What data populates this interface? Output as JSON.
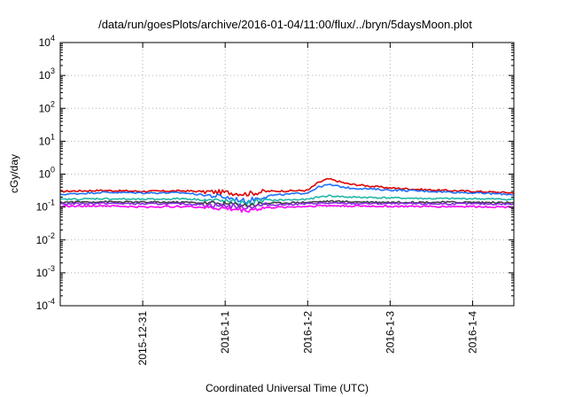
{
  "chart_data": {
    "type": "line",
    "title": "/data/run/goesPlots/archive/2016-01-04/11:00/flux/../bryn/5daysMoon.plot",
    "xlabel": "Coordinated Universal Time (UTC)",
    "ylabel": "cGy/day",
    "yscale": "log",
    "ylim": [
      0.0001,
      10000
    ],
    "xlim": [
      "2015-12-30T00:00",
      "2016-01-04T12:00"
    ],
    "x_tick_labels": [
      "2015-12-31",
      "2016-1-1",
      "2016-1-2",
      "2016-1-3",
      "2016-1-4"
    ],
    "x_tick_values": [
      "2015-12-31T00:00",
      "2016-01-01T00:00",
      "2016-01-02T00:00",
      "2016-01-03T00:00",
      "2016-01-04T00:00"
    ],
    "y_tick_labels": [
      {
        "base": "10",
        "exp": "-4",
        "value": 0.0001
      },
      {
        "base": "10",
        "exp": "-3",
        "value": 0.001
      },
      {
        "base": "10",
        "exp": "-2",
        "value": 0.01
      },
      {
        "base": "10",
        "exp": "-1",
        "value": 0.1
      },
      {
        "base": "10",
        "exp": "0",
        "value": 1
      },
      {
        "base": "10",
        "exp": "1",
        "value": 10
      },
      {
        "base": "10",
        "exp": "2",
        "value": 100
      },
      {
        "base": "10",
        "exp": "3",
        "value": 1000
      },
      {
        "base": "10",
        "exp": "4",
        "value": 10000
      }
    ],
    "grid": true,
    "legend": "none",
    "series": [
      {
        "color": "#e00000",
        "x": [
          "2015-12-30T00:00",
          "2015-12-30T12:00",
          "2015-12-31T00:00",
          "2015-12-31T12:00",
          "2016-01-01T00:00",
          "2016-01-01T06:00",
          "2016-01-01T12:00",
          "2016-01-02T00:00",
          "2016-01-02T03:00",
          "2016-01-02T06:00",
          "2016-01-02T12:00",
          "2016-01-03T00:00",
          "2016-01-03T12:00",
          "2016-01-04T00:00",
          "2016-01-04T12:00"
        ],
        "values": [
          0.3,
          0.32,
          0.3,
          0.31,
          0.28,
          0.25,
          0.3,
          0.32,
          0.55,
          0.72,
          0.5,
          0.38,
          0.33,
          0.3,
          0.27
        ]
      },
      {
        "color": "#1e6fff",
        "x": [
          "2015-12-30T00:00",
          "2015-12-30T12:00",
          "2015-12-31T00:00",
          "2015-12-31T12:00",
          "2016-01-01T00:00",
          "2016-01-01T06:00",
          "2016-01-01T12:00",
          "2016-01-02T00:00",
          "2016-01-02T03:00",
          "2016-01-02T06:00",
          "2016-01-02T12:00",
          "2016-01-03T00:00",
          "2016-01-03T12:00",
          "2016-01-04T00:00",
          "2016-01-04T12:00"
        ],
        "values": [
          0.24,
          0.28,
          0.27,
          0.27,
          0.2,
          0.15,
          0.22,
          0.27,
          0.4,
          0.48,
          0.38,
          0.33,
          0.3,
          0.27,
          0.24
        ]
      },
      {
        "color": "#20b8a8",
        "x": [
          "2015-12-30T00:00",
          "2015-12-30T12:00",
          "2015-12-31T00:00",
          "2015-12-31T12:00",
          "2016-01-01T00:00",
          "2016-01-01T06:00",
          "2016-01-01T12:00",
          "2016-01-02T00:00",
          "2016-01-02T03:00",
          "2016-01-02T06:00",
          "2016-01-02T12:00",
          "2016-01-03T00:00",
          "2016-01-03T12:00",
          "2016-01-04T00:00",
          "2016-01-04T12:00"
        ],
        "values": [
          0.17,
          0.18,
          0.17,
          0.18,
          0.15,
          0.13,
          0.16,
          0.17,
          0.2,
          0.22,
          0.2,
          0.19,
          0.18,
          0.18,
          0.17
        ]
      },
      {
        "color": "#404040",
        "x": [
          "2015-12-30T00:00",
          "2015-12-30T12:00",
          "2015-12-31T00:00",
          "2015-12-31T12:00",
          "2016-01-01T00:00",
          "2016-01-01T06:00",
          "2016-01-01T12:00",
          "2016-01-02T00:00",
          "2016-01-02T03:00",
          "2016-01-02T06:00",
          "2016-01-02T12:00",
          "2016-01-03T00:00",
          "2016-01-03T12:00",
          "2016-01-04T00:00",
          "2016-01-04T12:00"
        ],
        "values": [
          0.14,
          0.145,
          0.14,
          0.14,
          0.125,
          0.115,
          0.13,
          0.14,
          0.145,
          0.15,
          0.145,
          0.14,
          0.14,
          0.14,
          0.135
        ]
      },
      {
        "color": "#8a2be2",
        "x": [
          "2015-12-30T00:00",
          "2015-12-30T12:00",
          "2015-12-31T00:00",
          "2015-12-31T12:00",
          "2016-01-01T00:00",
          "2016-01-01T06:00",
          "2016-01-01T12:00",
          "2016-01-02T00:00",
          "2016-01-02T03:00",
          "2016-01-02T06:00",
          "2016-01-02T12:00",
          "2016-01-03T00:00",
          "2016-01-03T12:00",
          "2016-01-04T00:00",
          "2016-01-04T12:00"
        ],
        "values": [
          0.125,
          0.13,
          0.125,
          0.125,
          0.11,
          0.1,
          0.115,
          0.125,
          0.13,
          0.13,
          0.128,
          0.126,
          0.125,
          0.125,
          0.122
        ]
      },
      {
        "color": "#ff00ff",
        "x": [
          "2015-12-30T00:00",
          "2015-12-30T12:00",
          "2015-12-31T00:00",
          "2015-12-31T12:00",
          "2016-01-01T00:00",
          "2016-01-01T06:00",
          "2016-01-01T12:00",
          "2016-01-02T00:00",
          "2016-01-02T03:00",
          "2016-01-02T06:00",
          "2016-01-02T12:00",
          "2016-01-03T00:00",
          "2016-01-03T12:00",
          "2016-01-04T00:00",
          "2016-01-04T12:00"
        ],
        "values": [
          0.105,
          0.11,
          0.1,
          0.105,
          0.09,
          0.08,
          0.095,
          0.105,
          0.11,
          0.11,
          0.108,
          0.105,
          0.104,
          0.104,
          0.1
        ]
      }
    ]
  }
}
